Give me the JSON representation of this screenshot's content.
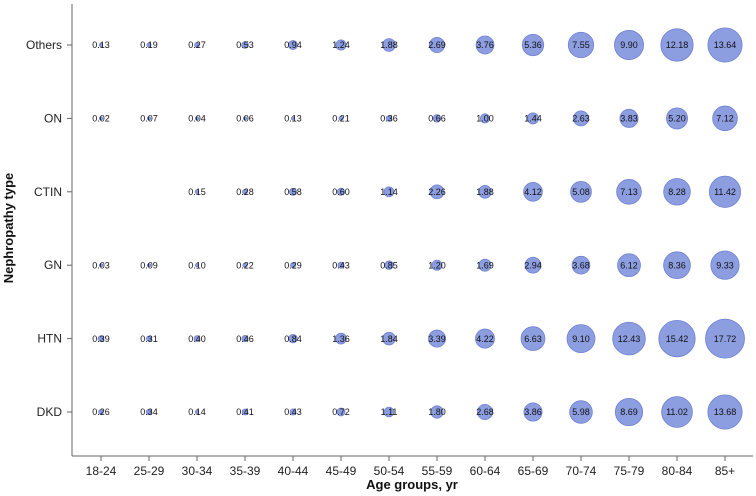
{
  "chart_data": {
    "type": "scatter",
    "subtype": "bubble",
    "xlabel": "Age groups,  yr",
    "ylabel": "Nephropathy type",
    "categories": [
      "18-24",
      "25-29",
      "30-34",
      "35-39",
      "40-44",
      "45-49",
      "50-54",
      "55-59",
      "60-64",
      "65-69",
      "70-74",
      "75-79",
      "80-84",
      "85+"
    ],
    "rows": [
      "Others",
      "ON",
      "CTIN",
      "GN",
      "HTN",
      "DKD"
    ],
    "series": [
      {
        "name": "Others",
        "values": [
          0.13,
          0.19,
          0.27,
          0.53,
          0.94,
          1.24,
          1.88,
          2.69,
          3.76,
          5.36,
          7.55,
          9.9,
          12.18,
          13.64
        ]
      },
      {
        "name": "ON",
        "values": [
          0.02,
          0.07,
          0.04,
          0.06,
          0.13,
          0.21,
          0.36,
          0.66,
          1.0,
          1.44,
          2.63,
          3.83,
          5.2,
          7.12
        ]
      },
      {
        "name": "CTIN",
        "values": [
          null,
          null,
          0.15,
          0.28,
          0.58,
          0.6,
          1.14,
          2.26,
          1.88,
          4.12,
          5.08,
          7.13,
          8.28,
          11.42
        ]
      },
      {
        "name": "GN",
        "values": [
          0.03,
          0.09,
          0.1,
          0.22,
          0.29,
          0.43,
          0.85,
          1.2,
          1.69,
          2.94,
          3.68,
          6.12,
          8.36,
          9.33
        ]
      },
      {
        "name": "HTN",
        "values": [
          0.39,
          0.31,
          0.4,
          0.46,
          0.84,
          1.36,
          1.84,
          3.39,
          4.22,
          6.63,
          9.1,
          12.43,
          15.42,
          17.72
        ]
      },
      {
        "name": "DKD",
        "values": [
          0.26,
          0.34,
          0.14,
          0.41,
          0.43,
          0.72,
          1.11,
          1.8,
          2.68,
          3.86,
          5.98,
          8.69,
          11.02,
          13.68
        ]
      }
    ],
    "value_labels": [
      [
        "0.13",
        "0.19",
        "0.27",
        "0.53",
        "0.94",
        "1.24",
        "1.88",
        "2.69",
        "3.76",
        "5.36",
        "7.55",
        "9.90",
        "12.18",
        "13.64"
      ],
      [
        "0.02",
        "0.07",
        "0.04",
        "0.06",
        "0.13",
        "0.21",
        "0.36",
        "0.66",
        "1.00",
        "1.44",
        "2.63",
        "3.83",
        "5.20",
        "7.12"
      ],
      [
        null,
        null,
        "0.15",
        "0.28",
        "0.58",
        "0.60",
        "1.14",
        "2.26",
        "1.88",
        "4.12",
        "5.08",
        "7.13",
        "8.28",
        "11.42"
      ],
      [
        "0.03",
        "0.09",
        "0.10",
        "0.22",
        "0.29",
        "0.43",
        "0.85",
        "1.20",
        "1.69",
        "2.94",
        "3.68",
        "6.12",
        "8.36",
        "9.33"
      ],
      [
        "0.39",
        "0.31",
        "0.40",
        "0.46",
        "0.84",
        "1.36",
        "1.84",
        "3.39",
        "4.22",
        "6.63",
        "9.10",
        "12.43",
        "15.42",
        "17.72"
      ],
      [
        "0.26",
        "0.34",
        "0.14",
        "0.41",
        "0.43",
        "0.72",
        "1.11",
        "1.80",
        "2.68",
        "3.86",
        "5.98",
        "8.69",
        "11.02",
        "13.68"
      ]
    ],
    "grid": false,
    "legend": "none",
    "bubble_color": "#8c9de0",
    "bubble_stroke": "#6f82d3"
  }
}
